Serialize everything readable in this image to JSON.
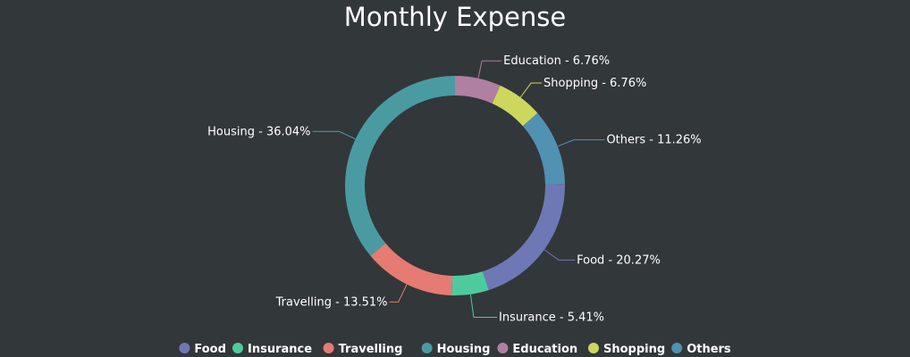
{
  "chart_data": {
    "type": "pie",
    "variant": "doughnut",
    "title": "Monthly Expense",
    "legend_position": "bottom",
    "slices": [
      {
        "name": "Food",
        "value": 20.27,
        "label": "Food - 20.27%",
        "color": "#6e78b5"
      },
      {
        "name": "Insurance",
        "value": 5.41,
        "label": "Insurance - 5.41%",
        "color": "#4ecb9e"
      },
      {
        "name": "Travelling",
        "value": 13.51,
        "label": "Travelling - 13.51%",
        "color": "#e57b73"
      },
      {
        "name": "Housing",
        "value": 36.04,
        "label": "Housing - 36.04%",
        "color": "#4a9ba1"
      },
      {
        "name": "Education",
        "value": 6.76,
        "label": "Education - 6.76%",
        "color": "#b07fa1"
      },
      {
        "name": "Shopping",
        "value": 6.76,
        "label": "Shopping - 6.76%",
        "color": "#cdd75e"
      },
      {
        "name": "Others",
        "value": 11.26,
        "label": "Others - 11.26%",
        "color": "#5191b2"
      }
    ]
  },
  "colors": {
    "background": "#32373a",
    "text": "#ffffff"
  }
}
